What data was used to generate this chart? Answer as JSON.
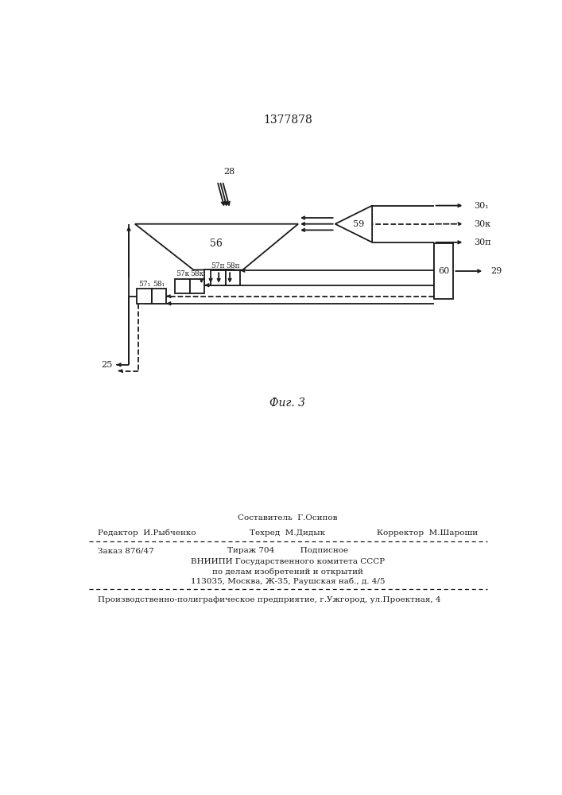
{
  "title": "1377878",
  "fig_label": "Фиг. 3",
  "bg_color": "#ffffff",
  "line_color": "#1a1a1a",
  "footer_sestavitel": "Составитель  Г.Осипов",
  "footer_redaktor": "Редактор  И.Рыбченко",
  "footer_tehred": "Техред  М.Дидык",
  "footer_korrektor": "Корректор  М.Шароши",
  "footer_zakaz": "Заказ 876/47",
  "footer_tirazh": "Тираж 704",
  "footer_podpisnoe": "Подписное",
  "footer_vniip1": "ВНИИПИ Государственного комитета СССР",
  "footer_vniip2": "по делам изобретений и открытий",
  "footer_vniip3": "113035, Москва, Ж-35, Раушская наб., д. 4/5",
  "footer_proizv": "Производственно-полиграфическое предприятие, г.Ужгород, ул.Проектная, 4"
}
